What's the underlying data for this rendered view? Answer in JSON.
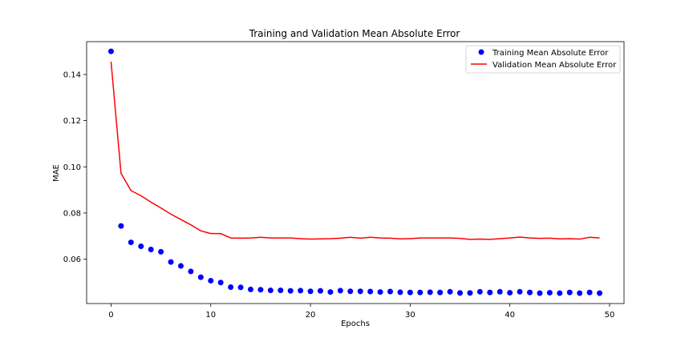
{
  "chart_data": {
    "type": "line",
    "title": "Training and Validation Mean Absolute Error",
    "xlabel": "Epochs",
    "ylabel": "MAE",
    "xlim": [
      -2.45,
      51.45
    ],
    "ylim": [
      0.0408,
      0.1542
    ],
    "xticks": [
      0,
      10,
      20,
      30,
      40,
      50
    ],
    "yticks": [
      0.06,
      0.08,
      0.1,
      0.12,
      0.14
    ],
    "xtick_labels": [
      "0",
      "10",
      "20",
      "30",
      "40",
      "50"
    ],
    "ytick_labels": [
      "0.06",
      "0.08",
      "0.10",
      "0.12",
      "0.14"
    ],
    "grid": false,
    "legend_position": "top-right",
    "x": [
      0,
      1,
      2,
      3,
      4,
      5,
      6,
      7,
      8,
      9,
      10,
      11,
      12,
      13,
      14,
      15,
      16,
      17,
      18,
      19,
      20,
      21,
      22,
      23,
      24,
      25,
      26,
      27,
      28,
      29,
      30,
      31,
      32,
      33,
      34,
      35,
      36,
      37,
      38,
      39,
      40,
      41,
      42,
      43,
      44,
      45,
      46,
      47,
      48,
      49
    ],
    "series": [
      {
        "name": "Training Mean Absolute Error",
        "style": "points",
        "color": "#0000ff",
        "values": [
          0.15,
          0.0744,
          0.0673,
          0.0656,
          0.0642,
          0.0632,
          0.0588,
          0.0571,
          0.0547,
          0.0522,
          0.0507,
          0.0499,
          0.0479,
          0.0478,
          0.0469,
          0.0468,
          0.0465,
          0.0465,
          0.0463,
          0.0464,
          0.0461,
          0.0463,
          0.0458,
          0.0464,
          0.0461,
          0.0461,
          0.046,
          0.0458,
          0.046,
          0.0457,
          0.0456,
          0.0456,
          0.0457,
          0.0456,
          0.0459,
          0.0454,
          0.0454,
          0.0459,
          0.0456,
          0.0459,
          0.0455,
          0.0459,
          0.0456,
          0.0453,
          0.0455,
          0.0453,
          0.0456,
          0.0453,
          0.0456,
          0.0453
        ]
      },
      {
        "name": "Validation Mean Absolute Error",
        "style": "line",
        "color": "#ff0000",
        "values": [
          0.1455,
          0.0972,
          0.0897,
          0.0875,
          0.0847,
          0.0822,
          0.0795,
          0.0772,
          0.0749,
          0.0723,
          0.0711,
          0.0711,
          0.0692,
          0.0691,
          0.0692,
          0.0695,
          0.0692,
          0.0692,
          0.0692,
          0.0689,
          0.0687,
          0.0688,
          0.0689,
          0.0691,
          0.0695,
          0.0691,
          0.0695,
          0.0692,
          0.0691,
          0.0688,
          0.0689,
          0.0692,
          0.0692,
          0.0692,
          0.0692,
          0.069,
          0.0686,
          0.0687,
          0.0686,
          0.0689,
          0.0692,
          0.0696,
          0.0692,
          0.069,
          0.0691,
          0.0688,
          0.0689,
          0.0687,
          0.0695,
          0.0692
        ]
      }
    ]
  }
}
